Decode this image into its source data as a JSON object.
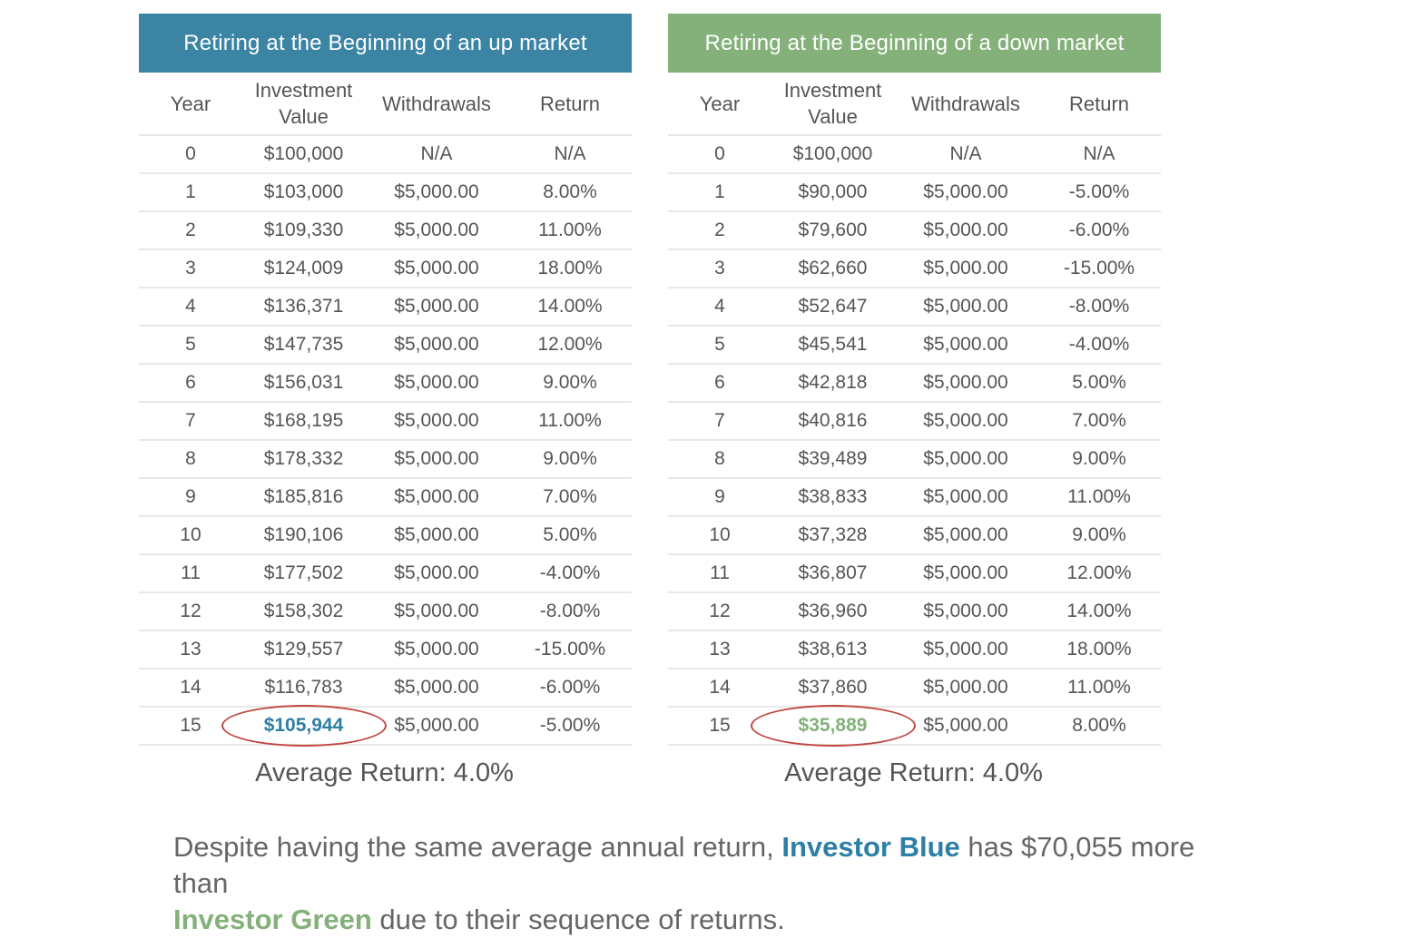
{
  "up_market": {
    "title": "Retiring at the Beginning of an up market",
    "header_color": "#3b84a4",
    "columns": {
      "year": "Year",
      "value_line1": "Investment",
      "value_line2": "Value",
      "withdrawals": "Withdrawals",
      "return": "Return"
    },
    "rows": [
      {
        "year": "0",
        "value": "$100,000",
        "withdrawals": "N/A",
        "return": "N/A"
      },
      {
        "year": "1",
        "value": "$103,000",
        "withdrawals": "$5,000.00",
        "return": "8.00%"
      },
      {
        "year": "2",
        "value": "$109,330",
        "withdrawals": "$5,000.00",
        "return": "11.00%"
      },
      {
        "year": "3",
        "value": "$124,009",
        "withdrawals": "$5,000.00",
        "return": "18.00%"
      },
      {
        "year": "4",
        "value": "$136,371",
        "withdrawals": "$5,000.00",
        "return": "14.00%"
      },
      {
        "year": "5",
        "value": "$147,735",
        "withdrawals": "$5,000.00",
        "return": "12.00%"
      },
      {
        "year": "6",
        "value": "$156,031",
        "withdrawals": "$5,000.00",
        "return": "9.00%"
      },
      {
        "year": "7",
        "value": "$168,195",
        "withdrawals": "$5,000.00",
        "return": "11.00%"
      },
      {
        "year": "8",
        "value": "$178,332",
        "withdrawals": "$5,000.00",
        "return": "9.00%"
      },
      {
        "year": "9",
        "value": "$185,816",
        "withdrawals": "$5,000.00",
        "return": "7.00%"
      },
      {
        "year": "10",
        "value": "$190,106",
        "withdrawals": "$5,000.00",
        "return": "5.00%"
      },
      {
        "year": "11",
        "value": "$177,502",
        "withdrawals": "$5,000.00",
        "return": "-4.00%"
      },
      {
        "year": "12",
        "value": "$158,302",
        "withdrawals": "$5,000.00",
        "return": "-8.00%"
      },
      {
        "year": "13",
        "value": "$129,557",
        "withdrawals": "$5,000.00",
        "return": "-15.00%"
      },
      {
        "year": "14",
        "value": "$116,783",
        "withdrawals": "$5,000.00",
        "return": "-6.00%"
      },
      {
        "year": "15",
        "value": "$105,944",
        "withdrawals": "$5,000.00",
        "return": "-5.00%",
        "highlight": true
      }
    ],
    "average_return": "Average Return: 4.0%"
  },
  "down_market": {
    "title": "Retiring at the Beginning of  a down market",
    "header_color": "#84b07a",
    "columns": {
      "year": "Year",
      "value_line1": "Investment",
      "value_line2": "Value",
      "withdrawals": "Withdrawals",
      "return": "Return"
    },
    "rows": [
      {
        "year": "0",
        "value": "$100,000",
        "withdrawals": "N/A",
        "return": "N/A"
      },
      {
        "year": "1",
        "value": "$90,000",
        "withdrawals": "$5,000.00",
        "return": "-5.00%"
      },
      {
        "year": "2",
        "value": "$79,600",
        "withdrawals": "$5,000.00",
        "return": "-6.00%"
      },
      {
        "year": "3",
        "value": "$62,660",
        "withdrawals": "$5,000.00",
        "return": "-15.00%"
      },
      {
        "year": "4",
        "value": "$52,647",
        "withdrawals": "$5,000.00",
        "return": "-8.00%"
      },
      {
        "year": "5",
        "value": "$45,541",
        "withdrawals": "$5,000.00",
        "return": "-4.00%"
      },
      {
        "year": "6",
        "value": "$42,818",
        "withdrawals": "$5,000.00",
        "return": "5.00%"
      },
      {
        "year": "7",
        "value": "$40,816",
        "withdrawals": "$5,000.00",
        "return": "7.00%"
      },
      {
        "year": "8",
        "value": "$39,489",
        "withdrawals": "$5,000.00",
        "return": "9.00%"
      },
      {
        "year": "9",
        "value": "$38,833",
        "withdrawals": "$5,000.00",
        "return": "11.00%"
      },
      {
        "year": "10",
        "value": "$37,328",
        "withdrawals": "$5,000.00",
        "return": "9.00%"
      },
      {
        "year": "11",
        "value": "$36,807",
        "withdrawals": "$5,000.00",
        "return": "12.00%"
      },
      {
        "year": "12",
        "value": "$36,960",
        "withdrawals": "$5,000.00",
        "return": "14.00%"
      },
      {
        "year": "13",
        "value": "$38,613",
        "withdrawals": "$5,000.00",
        "return": "18.00%"
      },
      {
        "year": "14",
        "value": "$37,860",
        "withdrawals": "$5,000.00",
        "return": "11.00%"
      },
      {
        "year": "15",
        "value": "$35,889",
        "withdrawals": "$5,000.00",
        "return": "8.00%",
        "highlight": true
      }
    ],
    "average_return": "Average Return: 4.0%"
  },
  "caption": {
    "part1": "Despite having the same average annual return, ",
    "investor_blue": "Investor Blue",
    "part2": " has $70,055 more than ",
    "investor_green": "Investor Green",
    "part3": " due to their sequence of returns."
  },
  "colors": {
    "blue_accent": "#2d7fa5",
    "green_accent": "#84b07a",
    "circle_red": "#c0463f"
  }
}
